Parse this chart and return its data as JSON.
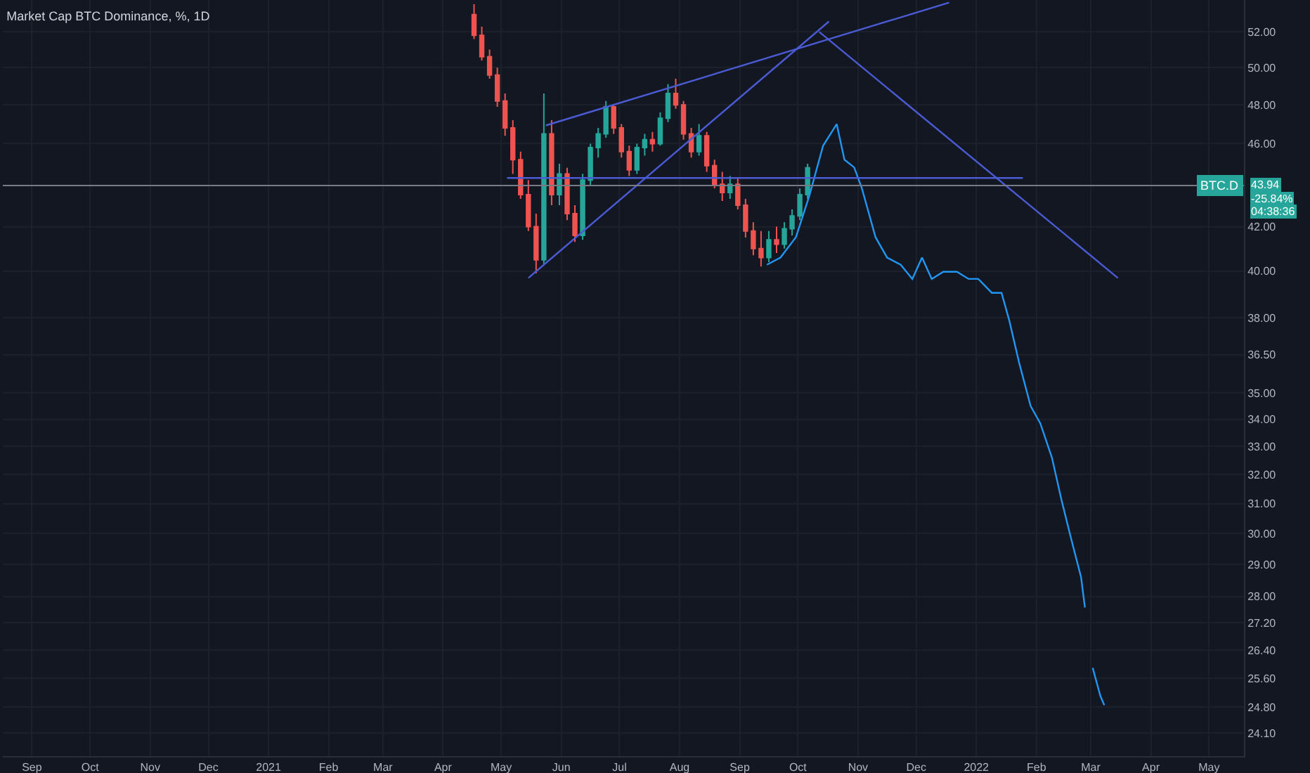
{
  "chart_data": {
    "type": "candlestick",
    "title": "Market Cap BTC Dominance, %, 1D",
    "log": "y",
    "grid": true,
    "xlim": [
      "2020-08-17",
      "2022-05-19"
    ],
    "xticks": [
      {
        "value": "2020-09-01",
        "label": "Sep"
      },
      {
        "value": "2020-10-01",
        "label": "Oct"
      },
      {
        "value": "2020-11-01",
        "label": "Nov"
      },
      {
        "value": "2020-12-01",
        "label": "Dec"
      },
      {
        "value": "2021-01-01",
        "label": "2021"
      },
      {
        "value": "2021-02-01",
        "label": "Feb"
      },
      {
        "value": "2021-03-01",
        "label": "Mar"
      },
      {
        "value": "2021-04-01",
        "label": "Apr"
      },
      {
        "value": "2021-05-01",
        "label": "May"
      },
      {
        "value": "2021-06-01",
        "label": "Jun"
      },
      {
        "value": "2021-07-01",
        "label": "Jul"
      },
      {
        "value": "2021-08-01",
        "label": "Aug"
      },
      {
        "value": "2021-09-01",
        "label": "Sep"
      },
      {
        "value": "2021-10-01",
        "label": "Oct"
      },
      {
        "value": "2021-11-01",
        "label": "Nov"
      },
      {
        "value": "2021-12-01",
        "label": "Dec"
      },
      {
        "value": "2022-01-01",
        "label": "2022"
      },
      {
        "value": "2022-02-01",
        "label": "Feb"
      },
      {
        "value": "2022-03-01",
        "label": "Mar"
      },
      {
        "value": "2022-04-01",
        "label": "Apr"
      },
      {
        "value": "2022-05-01",
        "label": "May"
      }
    ],
    "ylim": [
      23.5,
      53.85
    ],
    "yticks": [
      {
        "value": 24.1,
        "label": "24.10"
      },
      {
        "value": 24.8,
        "label": "24.80"
      },
      {
        "value": 25.6,
        "label": "25.60"
      },
      {
        "value": 26.4,
        "label": "26.40"
      },
      {
        "value": 27.2,
        "label": "27.20"
      },
      {
        "value": 28,
        "label": "28.00"
      },
      {
        "value": 29,
        "label": "29.00"
      },
      {
        "value": 30,
        "label": "30.00"
      },
      {
        "value": 31,
        "label": "31.00"
      },
      {
        "value": 32,
        "label": "32.00"
      },
      {
        "value": 33,
        "label": "33.00"
      },
      {
        "value": 34,
        "label": "34.00"
      },
      {
        "value": 35,
        "label": "35.00"
      },
      {
        "value": 36.5,
        "label": "36.50"
      },
      {
        "value": 38,
        "label": "38.00"
      },
      {
        "value": 40,
        "label": "40.00"
      },
      {
        "value": 42,
        "label": "42.00"
      },
      {
        "value": 46,
        "label": "46.00"
      },
      {
        "value": 48,
        "label": "48.00"
      },
      {
        "value": 50,
        "label": "50.00"
      },
      {
        "value": 52,
        "label": "52.00"
      }
    ],
    "ref_lines": [
      {
        "axis": "y",
        "value": 43.94,
        "label": "BTC.D",
        "color": "#787b86"
      }
    ],
    "annotations": [
      "43.94",
      "-25.84%",
      "04:38:36"
    ],
    "series": [
      {
        "type": "candlestick",
        "x": [
          "2021-04-17",
          "2021-04-21",
          "2021-04-25",
          "2021-04-29",
          "2021-05-03",
          "2021-05-07",
          "2021-05-11",
          "2021-05-15",
          "2021-05-19",
          "2021-05-23",
          "2021-05-27",
          "2021-05-31",
          "2021-06-04",
          "2021-06-08",
          "2021-06-12",
          "2021-06-16",
          "2021-06-20",
          "2021-06-24",
          "2021-06-28",
          "2021-07-02",
          "2021-07-06",
          "2021-07-10",
          "2021-07-14",
          "2021-07-18",
          "2021-07-22",
          "2021-07-26",
          "2021-07-30",
          "2021-08-03",
          "2021-08-07",
          "2021-08-11",
          "2021-08-15",
          "2021-08-19",
          "2021-08-23",
          "2021-08-27",
          "2021-08-31",
          "2021-09-04",
          "2021-09-08",
          "2021-09-12",
          "2021-09-16",
          "2021-09-20",
          "2021-09-24",
          "2021-09-28",
          "2021-10-02",
          "2021-10-06"
        ],
        "ohlc": [
          [
            53.0,
            53.6,
            51.6,
            51.8
          ],
          [
            51.8,
            52.3,
            50.4,
            50.6
          ],
          [
            50.6,
            51.0,
            49.4,
            49.6
          ],
          [
            49.6,
            50.0,
            47.9,
            48.2
          ],
          [
            48.2,
            48.6,
            46.4,
            46.8
          ],
          [
            46.8,
            47.2,
            44.5,
            45.2
          ],
          [
            45.2,
            45.6,
            43.3,
            43.5
          ],
          [
            43.5,
            44.2,
            41.8,
            42.0
          ],
          [
            42.0,
            42.6,
            39.9,
            40.5
          ],
          [
            40.5,
            48.6,
            40.3,
            46.5
          ],
          [
            46.5,
            47.2,
            43.0,
            43.5
          ],
          [
            43.5,
            45.0,
            43.0,
            44.5
          ],
          [
            44.5,
            44.8,
            42.3,
            42.6
          ],
          [
            42.6,
            43.0,
            41.3,
            41.6
          ],
          [
            41.6,
            44.5,
            41.4,
            44.2
          ],
          [
            44.2,
            46.0,
            43.9,
            45.8
          ],
          [
            45.8,
            46.8,
            45.3,
            46.5
          ],
          [
            46.5,
            48.2,
            46.3,
            47.9
          ],
          [
            47.9,
            48.0,
            46.5,
            46.8
          ],
          [
            46.8,
            47.0,
            45.3,
            45.6
          ],
          [
            45.6,
            45.9,
            44.4,
            44.7
          ],
          [
            44.7,
            46.0,
            44.5,
            45.8
          ],
          [
            45.8,
            46.5,
            45.4,
            46.2
          ],
          [
            46.2,
            46.6,
            45.6,
            46.0
          ],
          [
            46.0,
            47.6,
            45.9,
            47.3
          ],
          [
            47.3,
            49.1,
            47.1,
            48.6
          ],
          [
            48.6,
            49.4,
            47.8,
            48.0
          ],
          [
            48.0,
            48.2,
            46.2,
            46.5
          ],
          [
            46.5,
            46.8,
            45.3,
            45.6
          ],
          [
            45.6,
            47.0,
            45.4,
            46.4
          ],
          [
            46.4,
            46.6,
            44.6,
            44.9
          ],
          [
            44.9,
            45.2,
            43.8,
            44.0
          ],
          [
            44.0,
            44.6,
            43.2,
            43.6
          ],
          [
            43.6,
            44.4,
            43.3,
            44.0
          ],
          [
            44.0,
            44.3,
            42.8,
            43.0
          ],
          [
            43.0,
            43.3,
            41.5,
            41.8
          ],
          [
            41.8,
            42.2,
            40.7,
            41.0
          ],
          [
            41.0,
            41.8,
            40.2,
            40.6
          ],
          [
            40.6,
            41.8,
            40.4,
            41.4
          ],
          [
            41.4,
            42.0,
            40.8,
            41.2
          ],
          [
            41.2,
            42.2,
            41.0,
            41.9
          ],
          [
            41.9,
            42.8,
            41.6,
            42.5
          ],
          [
            42.5,
            43.8,
            42.3,
            43.5
          ],
          [
            43.5,
            45.0,
            43.3,
            44.8
          ]
        ]
      },
      {
        "type": "line",
        "color": "#2196f3",
        "x": [
          "2021-09-15",
          "2021-09-22",
          "2021-09-30",
          "2021-10-07",
          "2021-10-14",
          "2021-10-21",
          "2021-10-25",
          "2021-10-30",
          "2021-11-03",
          "2021-11-06",
          "2021-11-10",
          "2021-11-16",
          "2021-11-23",
          "2021-11-29",
          "2021-12-04",
          "2021-12-09",
          "2021-12-15",
          "2021-12-22",
          "2021-12-28",
          "2022-01-02",
          "2022-01-09",
          "2022-01-14",
          "2022-01-18",
          "2022-01-23",
          "2022-01-29",
          "2022-02-03",
          "2022-02-09",
          "2022-02-14",
          "2022-02-19",
          "2022-02-24",
          "2022-02-26",
          "2022-02-28",
          "2022-03-02",
          "2022-03-06",
          "2022-03-08"
        ],
        "values": [
          40.28,
          40.6,
          41.52,
          43.48,
          45.9,
          47.0,
          45.2,
          44.82,
          43.8,
          42.81,
          41.52,
          40.6,
          40.28,
          39.66,
          40.6,
          39.66,
          39.97,
          39.97,
          39.66,
          39.66,
          39.06,
          39.06,
          37.89,
          36.2,
          34.5,
          33.85,
          32.6,
          31.1,
          29.8,
          28.6,
          27.66,
          null,
          25.89,
          25.1,
          24.85
        ]
      },
      {
        "type": "line",
        "color": "#4a5bd4",
        "x": [
          "2021-05-15",
          "2021-10-17"
        ],
        "values": [
          39.7,
          52.6
        ]
      },
      {
        "type": "line",
        "color": "#4a5bd4",
        "x": [
          "2021-05-24",
          "2021-12-18"
        ],
        "values": [
          46.93,
          53.7
        ]
      },
      {
        "type": "line",
        "color": "#4a5bd4",
        "x": [
          "2021-10-12",
          "2022-03-15"
        ],
        "values": [
          52.0,
          39.7
        ]
      },
      {
        "type": "line",
        "color": "#4a5bd4",
        "x": [
          "2021-05-04",
          "2022-01-25"
        ],
        "values": [
          44.3,
          44.3
        ]
      }
    ]
  }
}
